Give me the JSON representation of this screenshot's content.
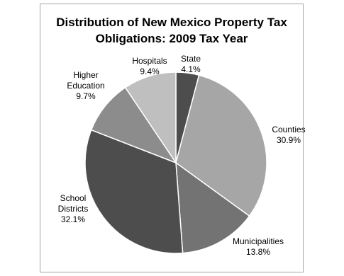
{
  "chart_data": {
    "type": "pie",
    "title_lines": [
      "Distribution of New Mexico Property Tax",
      "Obligations: 2009 Tax Year"
    ],
    "slices": [
      {
        "label_lines": [
          "State"
        ],
        "value_label": "4.1%",
        "value": 4.1,
        "color": "#4d4d4d"
      },
      {
        "label_lines": [
          "Counties"
        ],
        "value_label": "30.9%",
        "value": 30.9,
        "color": "#a6a6a6"
      },
      {
        "label_lines": [
          "Municipalities"
        ],
        "value_label": "13.8%",
        "value": 13.8,
        "color": "#737373"
      },
      {
        "label_lines": [
          "School",
          "Districts"
        ],
        "value_label": "32.1%",
        "value": 32.1,
        "color": "#4d4d4d"
      },
      {
        "label_lines": [
          "Higher",
          "Education"
        ],
        "value_label": "9.7%",
        "value": 9.7,
        "color": "#8c8c8c"
      },
      {
        "label_lines": [
          "Hospitals"
        ],
        "value_label": "9.4%",
        "value": 9.4,
        "color": "#bfbfbf"
      }
    ],
    "legend": "none"
  }
}
